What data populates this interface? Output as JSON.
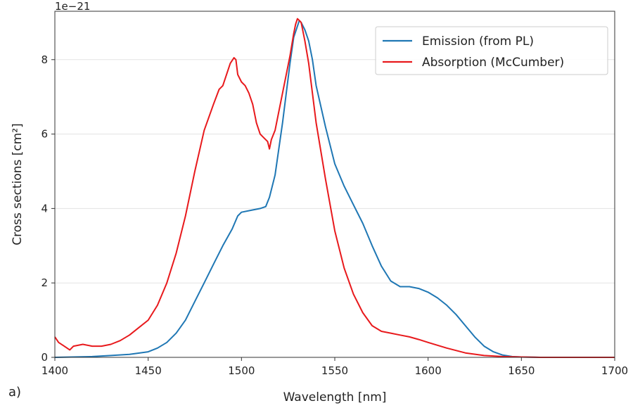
{
  "panel_label": "a)",
  "chart_data": {
    "type": "line",
    "xlabel": "Wavelength [nm]",
    "ylabel": "Cross sections [cm²]",
    "y_multiplier_label": "1e−21",
    "xlim": [
      1400,
      1700
    ],
    "ylim": [
      0,
      9.3
    ],
    "x_ticks": [
      1400,
      1450,
      1500,
      1550,
      1600,
      1650,
      1700
    ],
    "y_ticks": [
      0,
      2,
      4,
      6,
      8
    ],
    "grid": "horizontal",
    "legend_position": "top-right",
    "series": [
      {
        "name": "Emission (from PL)",
        "color": "#1f77b4",
        "x": [
          1400,
          1420,
          1430,
          1440,
          1450,
          1455,
          1460,
          1465,
          1470,
          1475,
          1480,
          1485,
          1490,
          1495,
          1498,
          1500,
          1505,
          1510,
          1513,
          1515,
          1518,
          1520,
          1522,
          1524,
          1526,
          1528,
          1530,
          1531,
          1532,
          1534,
          1536,
          1538,
          1540,
          1545,
          1550,
          1555,
          1560,
          1565,
          1570,
          1575,
          1580,
          1585,
          1590,
          1595,
          1600,
          1605,
          1610,
          1615,
          1620,
          1625,
          1630,
          1635,
          1640,
          1645,
          1650,
          1660,
          1670,
          1700
        ],
        "values": [
          0.0,
          0.02,
          0.05,
          0.08,
          0.15,
          0.25,
          0.4,
          0.65,
          1.0,
          1.5,
          2.0,
          2.5,
          3.0,
          3.45,
          3.8,
          3.9,
          3.95,
          4.0,
          4.05,
          4.3,
          4.9,
          5.6,
          6.3,
          7.1,
          7.9,
          8.6,
          8.9,
          9.05,
          9.0,
          8.8,
          8.5,
          8.0,
          7.3,
          6.2,
          5.2,
          4.6,
          4.1,
          3.6,
          3.0,
          2.45,
          2.05,
          1.9,
          1.9,
          1.85,
          1.75,
          1.6,
          1.4,
          1.15,
          0.85,
          0.55,
          0.3,
          0.15,
          0.06,
          0.02,
          0.01,
          0.0,
          0.0,
          0.0
        ]
      },
      {
        "name": "Absorption (McCumber)",
        "color": "#e8191c",
        "x": [
          1400,
          1402,
          1405,
          1408,
          1410,
          1415,
          1420,
          1425,
          1430,
          1435,
          1440,
          1445,
          1450,
          1455,
          1460,
          1465,
          1470,
          1475,
          1480,
          1485,
          1488,
          1490,
          1492,
          1494,
          1496,
          1497,
          1498,
          1500,
          1502,
          1504,
          1506,
          1508,
          1510,
          1512,
          1514,
          1515,
          1516,
          1518,
          1520,
          1522,
          1524,
          1526,
          1528,
          1529,
          1530,
          1531,
          1532,
          1534,
          1536,
          1538,
          1540,
          1545,
          1550,
          1555,
          1560,
          1565,
          1570,
          1575,
          1580,
          1585,
          1590,
          1595,
          1600,
          1610,
          1620,
          1630,
          1640,
          1650,
          1660,
          1700
        ],
        "values": [
          0.55,
          0.4,
          0.3,
          0.2,
          0.3,
          0.35,
          0.3,
          0.3,
          0.35,
          0.45,
          0.6,
          0.8,
          1.0,
          1.4,
          2.0,
          2.8,
          3.8,
          5.0,
          6.1,
          6.8,
          7.2,
          7.3,
          7.6,
          7.9,
          8.05,
          8.0,
          7.6,
          7.4,
          7.3,
          7.1,
          6.8,
          6.3,
          6.0,
          5.9,
          5.8,
          5.6,
          5.85,
          6.1,
          6.6,
          7.1,
          7.6,
          8.1,
          8.7,
          8.95,
          9.1,
          9.05,
          9.0,
          8.5,
          7.9,
          7.1,
          6.3,
          4.8,
          3.4,
          2.4,
          1.7,
          1.2,
          0.85,
          0.7,
          0.65,
          0.6,
          0.55,
          0.48,
          0.4,
          0.25,
          0.12,
          0.05,
          0.02,
          0.01,
          0.0,
          0.0
        ]
      }
    ]
  }
}
